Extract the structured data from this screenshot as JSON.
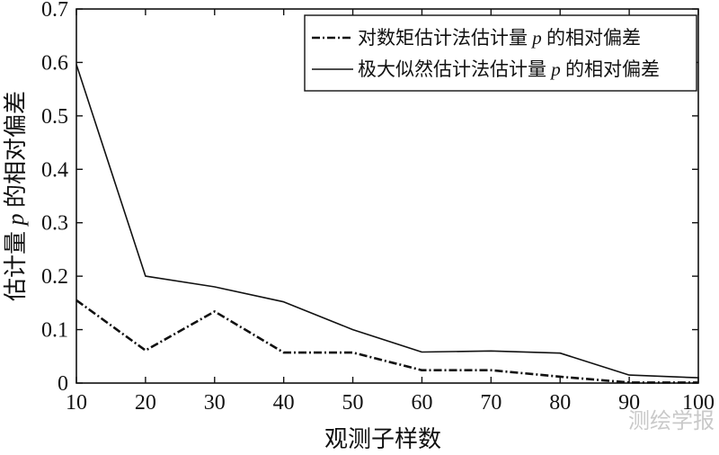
{
  "chart_data": {
    "type": "line",
    "title": "",
    "xlabel": "观测子样数",
    "ylabel": "估计量p的相对偏差",
    "xlim": [
      10,
      100
    ],
    "ylim": [
      0,
      0.7
    ],
    "xticks": [
      10,
      20,
      30,
      40,
      50,
      60,
      70,
      80,
      90,
      100
    ],
    "yticks": [
      0,
      0.1,
      0.2,
      0.3,
      0.4,
      0.5,
      0.6,
      0.7
    ],
    "xtick_labels": [
      "10",
      "20",
      "30",
      "40",
      "50",
      "60",
      "70",
      "80",
      "90",
      "100"
    ],
    "ytick_labels": [
      "0",
      "0.1",
      "0.2",
      "0.3",
      "0.4",
      "0.5",
      "0.6",
      "0.7"
    ],
    "grid": false,
    "legend_position": "top-right",
    "series": [
      {
        "name": "对数矩估计法估计量p的相对偏差",
        "style": "dash-dot",
        "x": [
          10,
          20,
          30,
          40,
          50,
          60,
          70,
          80,
          90,
          100
        ],
        "y": [
          0.155,
          0.061,
          0.134,
          0.057,
          0.057,
          0.024,
          0.024,
          0.012,
          0.001,
          0.001
        ]
      },
      {
        "name": "极大似然估计法估计量p的相对偏差",
        "style": "solid",
        "x": [
          10,
          20,
          30,
          40,
          50,
          60,
          70,
          80,
          90,
          100
        ],
        "y": [
          0.596,
          0.2,
          0.18,
          0.152,
          0.1,
          0.058,
          0.06,
          0.056,
          0.015,
          0.01
        ]
      }
    ]
  },
  "watermark": "测绘学报"
}
